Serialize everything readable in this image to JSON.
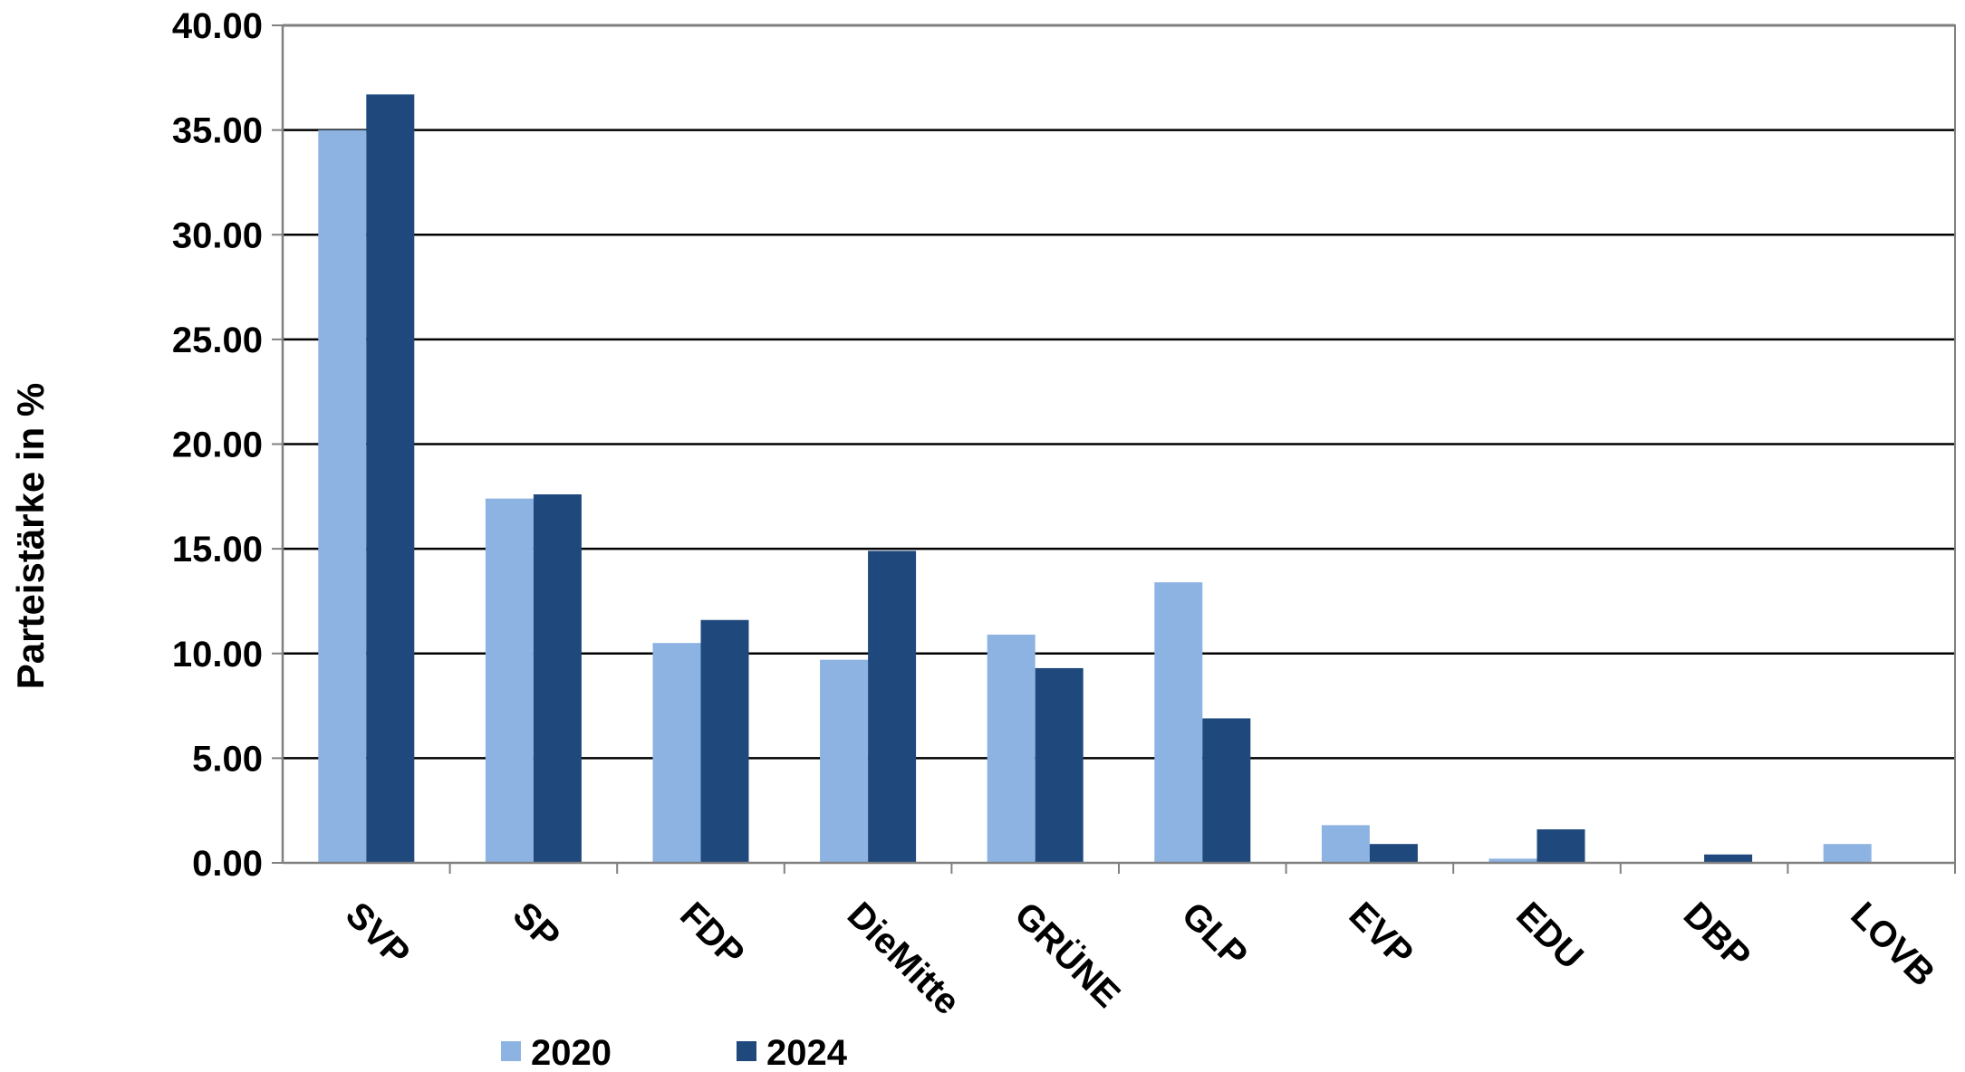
{
  "chart_data": {
    "type": "bar",
    "title": "",
    "xlabel": "",
    "ylabel": "Parteistärke in %",
    "ylim": [
      0,
      40
    ],
    "ytick_step": 5,
    "ytick_labels": [
      "0.00",
      "5.00",
      "10.00",
      "15.00",
      "20.00",
      "25.00",
      "30.00",
      "35.00",
      "40.00"
    ],
    "grid": true,
    "legend_position": "bottom",
    "categories": [
      "SVP",
      "SP",
      "FDP",
      "DieMitte",
      "GRÜNE",
      "GLP",
      "EVP",
      "EDU",
      "DBP",
      "LOVB"
    ],
    "series": [
      {
        "name": "2020",
        "color": "#8DB3E2",
        "values": [
          35.0,
          17.4,
          10.5,
          9.7,
          10.9,
          13.4,
          1.8,
          0.2,
          0.0,
          0.9
        ]
      },
      {
        "name": "2024",
        "color": "#1F497D",
        "values": [
          36.7,
          17.6,
          11.6,
          14.9,
          9.3,
          6.9,
          0.9,
          1.6,
          0.4,
          0.0
        ]
      }
    ]
  }
}
